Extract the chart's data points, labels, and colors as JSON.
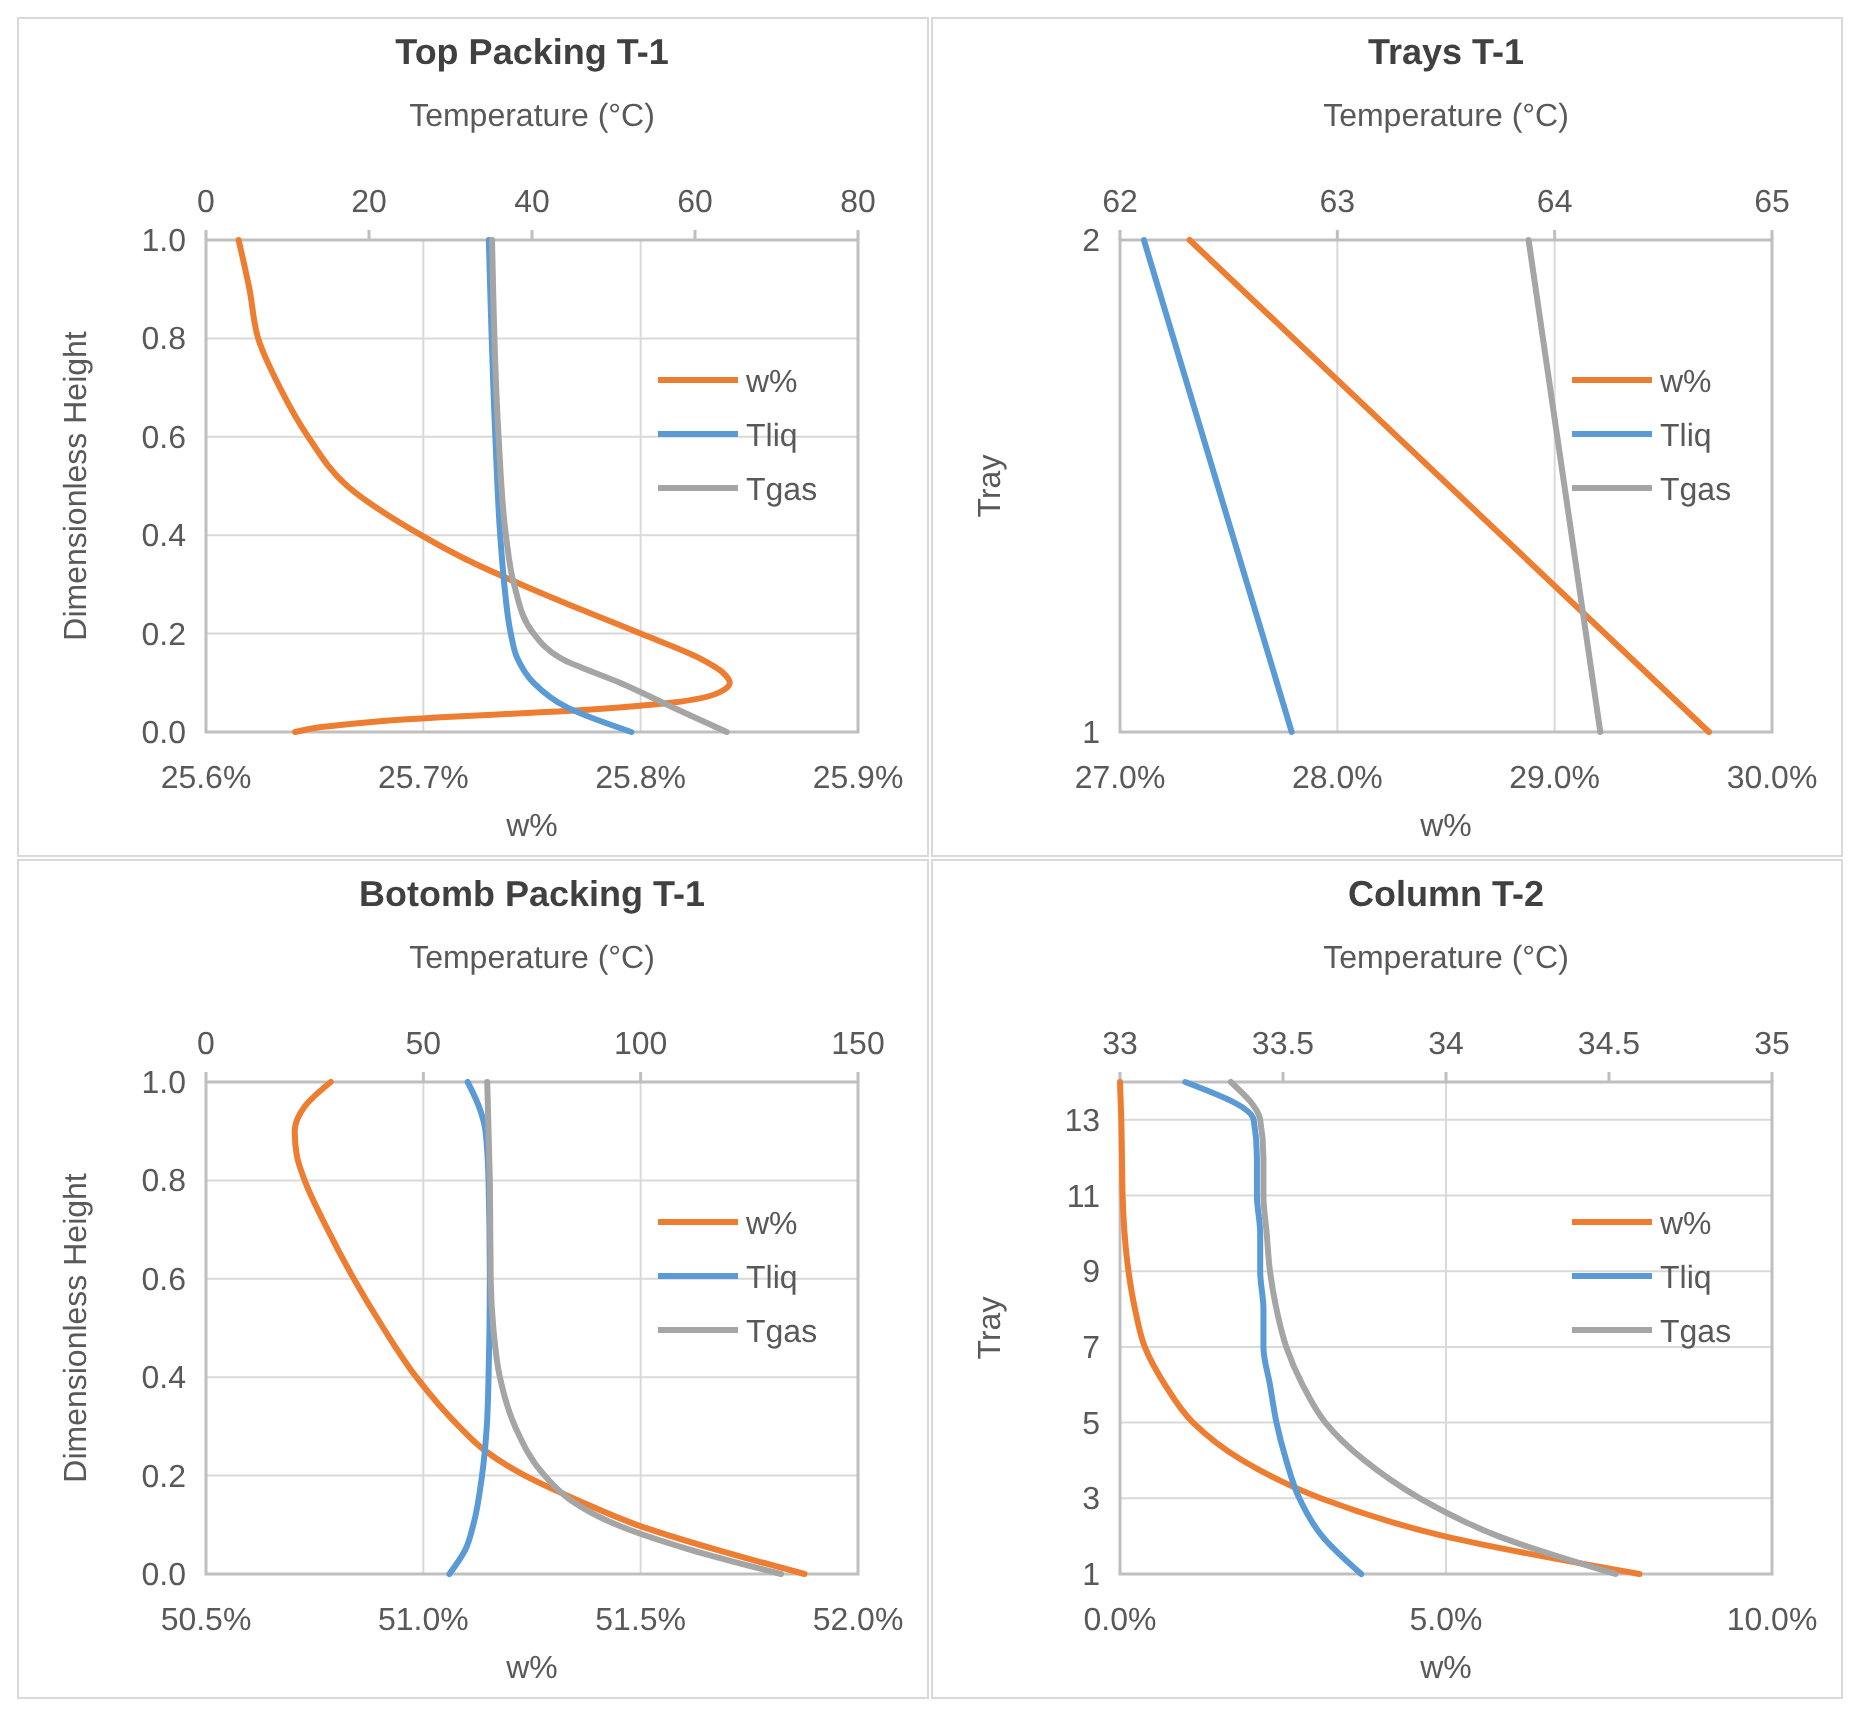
{
  "chart_data": [
    {
      "type": "line",
      "title": "Top Packing T-1",
      "xlabel": "w%",
      "x2label": "Temperature (°C)",
      "ylabel": "Dimensionless Height",
      "xlim": [
        25.6,
        25.9
      ],
      "xticks": [
        {
          "value": 25.6,
          "label": "25.6%"
        },
        {
          "value": 25.7,
          "label": "25.7%"
        },
        {
          "value": 25.8,
          "label": "25.8%"
        },
        {
          "value": 25.9,
          "label": "25.9%"
        }
      ],
      "x2lim": [
        0,
        80
      ],
      "x2ticks": [
        0,
        20,
        40,
        60,
        80
      ],
      "ylim": [
        0,
        1
      ],
      "yticks": [
        {
          "value": 0,
          "label": "0.0"
        },
        {
          "value": 0.2,
          "label": "0.2"
        },
        {
          "value": 0.4,
          "label": "0.4"
        },
        {
          "value": 0.6,
          "label": "0.6"
        },
        {
          "value": 0.8,
          "label": "0.8"
        },
        {
          "value": 1,
          "label": "1.0"
        }
      ],
      "grid": true,
      "legend": "right",
      "series": [
        {
          "name": "w%",
          "color": "#ed7d31",
          "x": [
            25.641,
            25.653,
            25.675,
            25.708,
            25.754,
            25.79,
            25.815,
            25.836,
            25.841,
            25.838,
            25.827,
            25.8,
            25.772,
            25.745,
            25.72,
            25.699,
            25.665,
            25.647,
            25.634,
            25.624,
            25.62,
            25.615
          ],
          "values": [
            0,
            0.01,
            0.02,
            0.03,
            0.04,
            0.05,
            0.06,
            0.08,
            0.1,
            0.12,
            0.15,
            0.2,
            0.25,
            0.3,
            0.35,
            0.4,
            0.5,
            0.6,
            0.7,
            0.8,
            0.9,
            1.0
          ]
        },
        {
          "name": "Tliq",
          "color": "#5b9bd5",
          "axis": "x2",
          "x": [
            52.2,
            44.3,
            40.2,
            38.2,
            37.4,
            36.6,
            36.1,
            35.5,
            34.7
          ],
          "values": [
            0,
            0.05,
            0.1,
            0.15,
            0.2,
            0.3,
            0.4,
            0.6,
            1.0
          ]
        },
        {
          "name": "Tgas",
          "color": "#a5a5a5",
          "axis": "x2",
          "x": [
            63.9,
            57.3,
            50.8,
            43.5,
            40.2,
            37.8,
            36.8,
            35.9,
            35.1
          ],
          "values": [
            0,
            0.05,
            0.1,
            0.15,
            0.2,
            0.3,
            0.4,
            0.6,
            1.0
          ]
        }
      ]
    },
    {
      "type": "line",
      "title": "Trays T-1",
      "xlabel": "w%",
      "x2label": "Temperature (°C)",
      "ylabel": "Tray",
      "xlim": [
        27,
        30
      ],
      "xticks": [
        {
          "value": 27,
          "label": "27.0%"
        },
        {
          "value": 28,
          "label": "28.0%"
        },
        {
          "value": 29,
          "label": "29.0%"
        },
        {
          "value": 30,
          "label": "30.0%"
        }
      ],
      "x2lim": [
        62,
        65
      ],
      "x2ticks": [
        62,
        63,
        64,
        65
      ],
      "ylim": [
        1,
        2
      ],
      "yticks": [
        1,
        2
      ],
      "grid": true,
      "legend": "right",
      "series": [
        {
          "name": "w%",
          "color": "#ed7d31",
          "x": [
            29.71,
            27.32
          ],
          "values": [
            1,
            2
          ]
        },
        {
          "name": "Tliq",
          "color": "#5b9bd5",
          "axis": "x2",
          "x": [
            62.79,
            62.11
          ],
          "values": [
            1,
            2
          ]
        },
        {
          "name": "Tgas",
          "color": "#a5a5a5",
          "axis": "x2",
          "x": [
            64.21,
            63.88
          ],
          "values": [
            1,
            2
          ]
        }
      ]
    },
    {
      "type": "line",
      "title": "Botomb Packing T-1",
      "xlabel": "w%",
      "x2label": "Temperature (°C)",
      "ylabel": "Dimensionless Height",
      "xlim": [
        50.5,
        52
      ],
      "xticks": [
        {
          "value": 50.5,
          "label": "50.5%"
        },
        {
          "value": 51,
          "label": "51.0%"
        },
        {
          "value": 51.5,
          "label": "51.5%"
        },
        {
          "value": 52,
          "label": "52.0%"
        }
      ],
      "x2lim": [
        0,
        150
      ],
      "x2ticks": [
        0,
        50,
        100,
        150
      ],
      "ylim": [
        0,
        1
      ],
      "yticks": [
        {
          "value": 0,
          "label": "0.0"
        },
        {
          "value": 0.2,
          "label": "0.2"
        },
        {
          "value": 0.4,
          "label": "0.4"
        },
        {
          "value": 0.6,
          "label": "0.6"
        },
        {
          "value": 0.8,
          "label": "0.8"
        },
        {
          "value": 1,
          "label": "1.0"
        }
      ],
      "grid": true,
      "legend": "right",
      "series": [
        {
          "name": "w%",
          "color": "#ed7d31",
          "x": [
            51.877,
            51.672,
            51.491,
            51.355,
            51.234,
            51.143,
            51.082,
            50.984,
            50.908,
            50.84,
            50.78,
            50.727,
            50.709,
            50.704,
            50.727,
            50.787
          ],
          "values": [
            0,
            0.05,
            0.1,
            0.15,
            0.2,
            0.25,
            0.3,
            0.4,
            0.5,
            0.6,
            0.7,
            0.8,
            0.85,
            0.9,
            0.95,
            1.0
          ]
        },
        {
          "name": "Tliq",
          "color": "#5b9bd5",
          "axis": "x2",
          "x": [
            56.0,
            59.7,
            61.5,
            63.5,
            64.6,
            65.0,
            65.3,
            65.0,
            64.3,
            62.8,
            60.2
          ],
          "values": [
            0,
            0.05,
            0.1,
            0.2,
            0.3,
            0.4,
            0.6,
            0.8,
            0.9,
            0.95,
            1.0
          ]
        },
        {
          "name": "Tgas",
          "color": "#a5a5a5",
          "axis": "x2",
          "x": [
            132.3,
            111.1,
            94.5,
            83.9,
            77.9,
            71.1,
            67.6,
            66.1,
            65.5,
            65.3,
            64.7
          ],
          "values": [
            0,
            0.05,
            0.1,
            0.15,
            0.2,
            0.3,
            0.4,
            0.5,
            0.6,
            0.8,
            1.0
          ]
        }
      ]
    },
    {
      "type": "line",
      "title": "Column T-2",
      "xlabel": "w%",
      "x2label": "Temperature (°C)",
      "ylabel": "Tray",
      "xlim": [
        0,
        10
      ],
      "xticks": [
        {
          "value": 0,
          "label": "0.0%"
        },
        {
          "value": 5,
          "label": "5.0%"
        },
        {
          "value": 10,
          "label": "10.0%"
        }
      ],
      "x2lim": [
        33,
        35
      ],
      "x2ticks": [
        33,
        33.5,
        34,
        34.5,
        35
      ],
      "ylim": [
        1,
        14
      ],
      "yticks": [
        1,
        3,
        5,
        7,
        9,
        11,
        13
      ],
      "grid": true,
      "legend": "right",
      "series": [
        {
          "name": "w%",
          "color": "#ed7d31",
          "x": [
            7.97,
            4.97,
            3.08,
            1.88,
            1.12,
            0.69,
            0.38,
            0.23,
            0.13,
            0.07,
            0.04,
            0.03,
            0.02,
            0.0
          ],
          "values": [
            1,
            2,
            3,
            4,
            5,
            6,
            7,
            8,
            9,
            10,
            11,
            12,
            13,
            14
          ]
        },
        {
          "name": "Tliq",
          "color": "#5b9bd5",
          "axis": "x2",
          "x": [
            33.74,
            33.62,
            33.55,
            33.51,
            33.48,
            33.46,
            33.44,
            33.44,
            33.43,
            33.43,
            33.42,
            33.42,
            33.41,
            33.2
          ],
          "values": [
            1,
            2,
            3,
            4,
            5,
            6,
            7,
            8,
            9,
            10,
            11,
            12,
            13,
            14
          ]
        },
        {
          "name": "Tgas",
          "color": "#a5a5a5",
          "axis": "x2",
          "x": [
            34.52,
            34.16,
            33.92,
            33.75,
            33.63,
            33.56,
            33.51,
            33.48,
            33.46,
            33.45,
            33.44,
            33.44,
            33.43,
            33.34
          ],
          "values": [
            1,
            2,
            3,
            4,
            5,
            6,
            7,
            8,
            9,
            10,
            11,
            12,
            13,
            14
          ]
        }
      ]
    }
  ]
}
